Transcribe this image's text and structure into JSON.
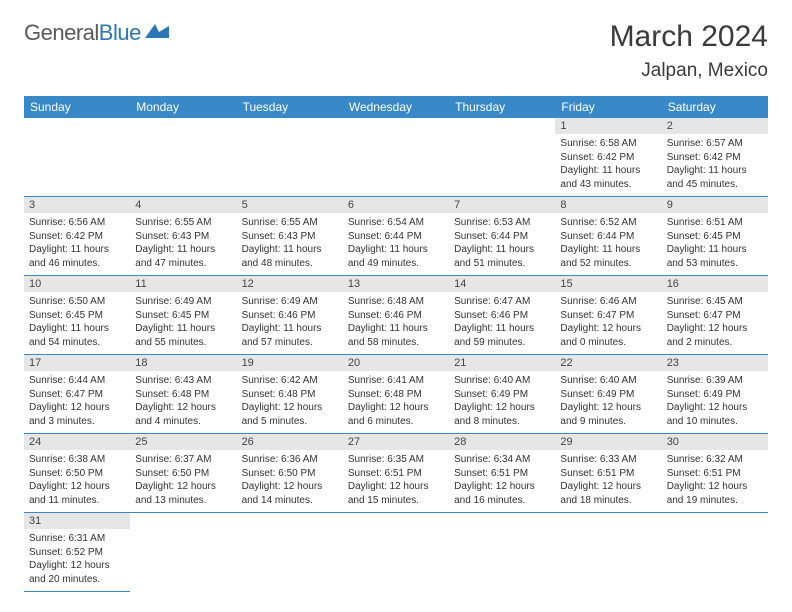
{
  "logo": {
    "text1": "General",
    "text2": "Blue"
  },
  "title": "March 2024",
  "location": "Jalpan, Mexico",
  "colors": {
    "header_bg": "#3989c8",
    "daynum_bg": "#e6e6e6",
    "border": "#3989c8"
  },
  "day_headers": [
    "Sunday",
    "Monday",
    "Tuesday",
    "Wednesday",
    "Thursday",
    "Friday",
    "Saturday"
  ],
  "weeks": [
    [
      null,
      null,
      null,
      null,
      null,
      {
        "n": "1",
        "sr": "Sunrise: 6:58 AM",
        "ss": "Sunset: 6:42 PM",
        "d1": "Daylight: 11 hours",
        "d2": "and 43 minutes."
      },
      {
        "n": "2",
        "sr": "Sunrise: 6:57 AM",
        "ss": "Sunset: 6:42 PM",
        "d1": "Daylight: 11 hours",
        "d2": "and 45 minutes."
      }
    ],
    [
      {
        "n": "3",
        "sr": "Sunrise: 6:56 AM",
        "ss": "Sunset: 6:42 PM",
        "d1": "Daylight: 11 hours",
        "d2": "and 46 minutes."
      },
      {
        "n": "4",
        "sr": "Sunrise: 6:55 AM",
        "ss": "Sunset: 6:43 PM",
        "d1": "Daylight: 11 hours",
        "d2": "and 47 minutes."
      },
      {
        "n": "5",
        "sr": "Sunrise: 6:55 AM",
        "ss": "Sunset: 6:43 PM",
        "d1": "Daylight: 11 hours",
        "d2": "and 48 minutes."
      },
      {
        "n": "6",
        "sr": "Sunrise: 6:54 AM",
        "ss": "Sunset: 6:44 PM",
        "d1": "Daylight: 11 hours",
        "d2": "and 49 minutes."
      },
      {
        "n": "7",
        "sr": "Sunrise: 6:53 AM",
        "ss": "Sunset: 6:44 PM",
        "d1": "Daylight: 11 hours",
        "d2": "and 51 minutes."
      },
      {
        "n": "8",
        "sr": "Sunrise: 6:52 AM",
        "ss": "Sunset: 6:44 PM",
        "d1": "Daylight: 11 hours",
        "d2": "and 52 minutes."
      },
      {
        "n": "9",
        "sr": "Sunrise: 6:51 AM",
        "ss": "Sunset: 6:45 PM",
        "d1": "Daylight: 11 hours",
        "d2": "and 53 minutes."
      }
    ],
    [
      {
        "n": "10",
        "sr": "Sunrise: 6:50 AM",
        "ss": "Sunset: 6:45 PM",
        "d1": "Daylight: 11 hours",
        "d2": "and 54 minutes."
      },
      {
        "n": "11",
        "sr": "Sunrise: 6:49 AM",
        "ss": "Sunset: 6:45 PM",
        "d1": "Daylight: 11 hours",
        "d2": "and 55 minutes."
      },
      {
        "n": "12",
        "sr": "Sunrise: 6:49 AM",
        "ss": "Sunset: 6:46 PM",
        "d1": "Daylight: 11 hours",
        "d2": "and 57 minutes."
      },
      {
        "n": "13",
        "sr": "Sunrise: 6:48 AM",
        "ss": "Sunset: 6:46 PM",
        "d1": "Daylight: 11 hours",
        "d2": "and 58 minutes."
      },
      {
        "n": "14",
        "sr": "Sunrise: 6:47 AM",
        "ss": "Sunset: 6:46 PM",
        "d1": "Daylight: 11 hours",
        "d2": "and 59 minutes."
      },
      {
        "n": "15",
        "sr": "Sunrise: 6:46 AM",
        "ss": "Sunset: 6:47 PM",
        "d1": "Daylight: 12 hours",
        "d2": "and 0 minutes."
      },
      {
        "n": "16",
        "sr": "Sunrise: 6:45 AM",
        "ss": "Sunset: 6:47 PM",
        "d1": "Daylight: 12 hours",
        "d2": "and 2 minutes."
      }
    ],
    [
      {
        "n": "17",
        "sr": "Sunrise: 6:44 AM",
        "ss": "Sunset: 6:47 PM",
        "d1": "Daylight: 12 hours",
        "d2": "and 3 minutes."
      },
      {
        "n": "18",
        "sr": "Sunrise: 6:43 AM",
        "ss": "Sunset: 6:48 PM",
        "d1": "Daylight: 12 hours",
        "d2": "and 4 minutes."
      },
      {
        "n": "19",
        "sr": "Sunrise: 6:42 AM",
        "ss": "Sunset: 6:48 PM",
        "d1": "Daylight: 12 hours",
        "d2": "and 5 minutes."
      },
      {
        "n": "20",
        "sr": "Sunrise: 6:41 AM",
        "ss": "Sunset: 6:48 PM",
        "d1": "Daylight: 12 hours",
        "d2": "and 6 minutes."
      },
      {
        "n": "21",
        "sr": "Sunrise: 6:40 AM",
        "ss": "Sunset: 6:49 PM",
        "d1": "Daylight: 12 hours",
        "d2": "and 8 minutes."
      },
      {
        "n": "22",
        "sr": "Sunrise: 6:40 AM",
        "ss": "Sunset: 6:49 PM",
        "d1": "Daylight: 12 hours",
        "d2": "and 9 minutes."
      },
      {
        "n": "23",
        "sr": "Sunrise: 6:39 AM",
        "ss": "Sunset: 6:49 PM",
        "d1": "Daylight: 12 hours",
        "d2": "and 10 minutes."
      }
    ],
    [
      {
        "n": "24",
        "sr": "Sunrise: 6:38 AM",
        "ss": "Sunset: 6:50 PM",
        "d1": "Daylight: 12 hours",
        "d2": "and 11 minutes."
      },
      {
        "n": "25",
        "sr": "Sunrise: 6:37 AM",
        "ss": "Sunset: 6:50 PM",
        "d1": "Daylight: 12 hours",
        "d2": "and 13 minutes."
      },
      {
        "n": "26",
        "sr": "Sunrise: 6:36 AM",
        "ss": "Sunset: 6:50 PM",
        "d1": "Daylight: 12 hours",
        "d2": "and 14 minutes."
      },
      {
        "n": "27",
        "sr": "Sunrise: 6:35 AM",
        "ss": "Sunset: 6:51 PM",
        "d1": "Daylight: 12 hours",
        "d2": "and 15 minutes."
      },
      {
        "n": "28",
        "sr": "Sunrise: 6:34 AM",
        "ss": "Sunset: 6:51 PM",
        "d1": "Daylight: 12 hours",
        "d2": "and 16 minutes."
      },
      {
        "n": "29",
        "sr": "Sunrise: 6:33 AM",
        "ss": "Sunset: 6:51 PM",
        "d1": "Daylight: 12 hours",
        "d2": "and 18 minutes."
      },
      {
        "n": "30",
        "sr": "Sunrise: 6:32 AM",
        "ss": "Sunset: 6:51 PM",
        "d1": "Daylight: 12 hours",
        "d2": "and 19 minutes."
      }
    ],
    [
      {
        "n": "31",
        "sr": "Sunrise: 6:31 AM",
        "ss": "Sunset: 6:52 PM",
        "d1": "Daylight: 12 hours",
        "d2": "and 20 minutes."
      },
      null,
      null,
      null,
      null,
      null,
      null
    ]
  ]
}
